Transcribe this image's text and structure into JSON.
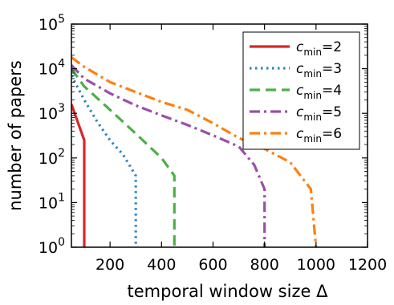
{
  "chart_data": {
    "type": "line",
    "xlabel": "temporal window size Δ",
    "ylabel": "number of papers",
    "xlim": [
      50,
      1200
    ],
    "ylim": [
      1,
      100000
    ],
    "yscale": "log",
    "xticks": [
      200,
      400,
      600,
      800,
      1000,
      1200
    ],
    "xtick_labels": [
      "200",
      "400",
      "600",
      "800",
      "1000",
      "1200"
    ],
    "yticks": [
      1,
      10,
      100,
      1000,
      10000,
      100000
    ],
    "ytick_labels": [
      {
        "base": "10",
        "exp": "0"
      },
      {
        "base": "10",
        "exp": "1"
      },
      {
        "base": "10",
        "exp": "2"
      },
      {
        "base": "10",
        "exp": "3"
      },
      {
        "base": "10",
        "exp": "4"
      },
      {
        "base": "10",
        "exp": "5"
      }
    ],
    "grid": false,
    "legend_position": "top-right",
    "series": [
      {
        "label": {
          "var": "c",
          "sub": "min",
          "rest": "=2"
        },
        "color": "#d62728",
        "dash": "solid",
        "points": [
          [
            50,
            1600
          ],
          [
            100,
            250
          ],
          [
            100,
            1
          ]
        ]
      },
      {
        "label": {
          "var": "c",
          "sub": "min",
          "rest": "=3"
        },
        "color": "#2e86c1",
        "dash": "dotted",
        "points": [
          [
            50,
            7000
          ],
          [
            100,
            2000
          ],
          [
            150,
            650
          ],
          [
            200,
            250
          ],
          [
            250,
            120
          ],
          [
            300,
            40
          ],
          [
            300,
            1
          ]
        ]
      },
      {
        "label": {
          "var": "c",
          "sub": "min",
          "rest": "=4"
        },
        "color": "#4daf4a",
        "dash": "dashed",
        "points": [
          [
            50,
            10000
          ],
          [
            100,
            4000
          ],
          [
            200,
            1200
          ],
          [
            300,
            350
          ],
          [
            400,
            100
          ],
          [
            450,
            40
          ],
          [
            450,
            1
          ]
        ]
      },
      {
        "label": {
          "var": "c",
          "sub": "min",
          "rest": "=5"
        },
        "color": "#9b4fa8",
        "dash": "dashdot",
        "points": [
          [
            50,
            12000
          ],
          [
            100,
            6000
          ],
          [
            200,
            2800
          ],
          [
            300,
            1500
          ],
          [
            400,
            900
          ],
          [
            500,
            550
          ],
          [
            600,
            320
          ],
          [
            700,
            180
          ],
          [
            760,
            70
          ],
          [
            800,
            20
          ],
          [
            800,
            1
          ]
        ]
      },
      {
        "label": {
          "var": "c",
          "sub": "min",
          "rest": "=6"
        },
        "color": "#ff7f0e",
        "dash": "dashdot",
        "points": [
          [
            50,
            18000
          ],
          [
            100,
            11000
          ],
          [
            200,
            5000
          ],
          [
            300,
            3000
          ],
          [
            400,
            1800
          ],
          [
            500,
            1200
          ],
          [
            600,
            600
          ],
          [
            700,
            280
          ],
          [
            800,
            160
          ],
          [
            900,
            80
          ],
          [
            980,
            20
          ],
          [
            1000,
            1
          ]
        ]
      }
    ]
  }
}
